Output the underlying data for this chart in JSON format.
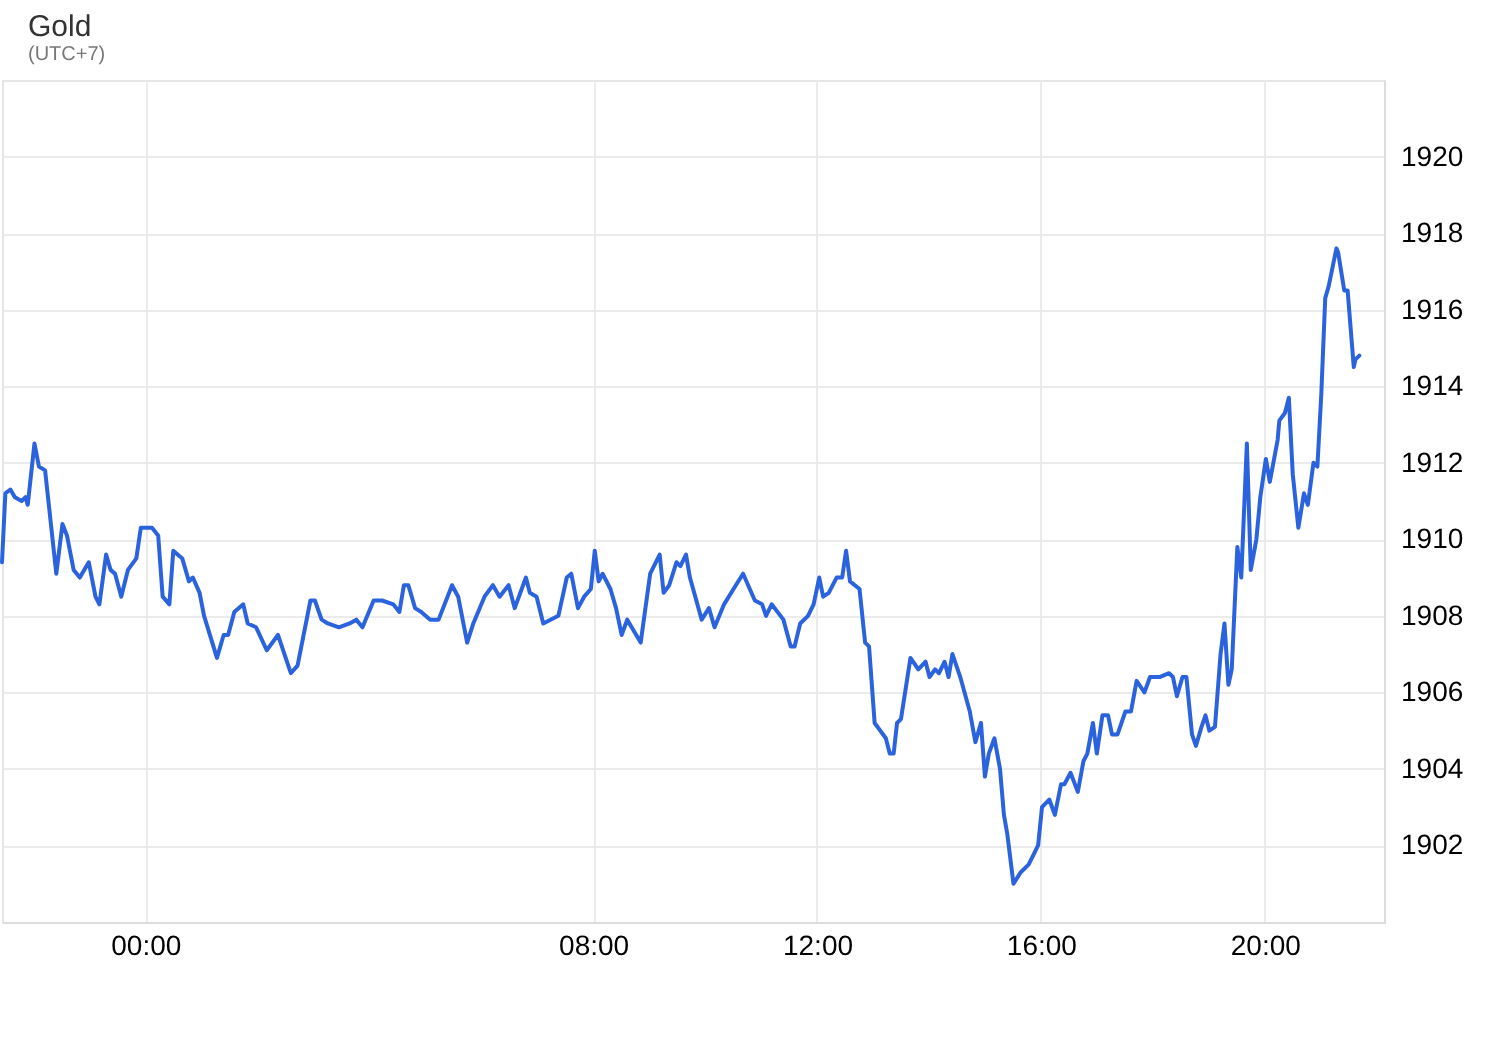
{
  "chart_data": {
    "type": "line",
    "title": "Gold",
    "subtitle": "(UTC+7)",
    "color": "#2b63de",
    "grid": true,
    "xlim": [
      -2.56,
      22.13
    ],
    "xticks": [
      {
        "value": 0,
        "label": "00:00"
      },
      {
        "value": 8,
        "label": "08:00"
      },
      {
        "value": 12,
        "label": "12:00"
      },
      {
        "value": 16,
        "label": "16:00"
      },
      {
        "value": 20,
        "label": "20:00"
      }
    ],
    "ylim": [
      1900,
      1922
    ],
    "yticks": [
      1902,
      1904,
      1906,
      1908,
      1910,
      1912,
      1914,
      1916,
      1918,
      1920
    ],
    "x": [
      -2.56,
      -2.5,
      -2.41,
      -2.33,
      -2.21,
      -2.14,
      -2.1,
      -1.98,
      -1.9,
      -1.79,
      -1.59,
      -1.48,
      -1.4,
      -1.28,
      -1.17,
      -1.01,
      -0.89,
      -0.82,
      -0.7,
      -0.62,
      -0.54,
      -0.43,
      -0.31,
      -0.16,
      -0.08,
      0.12,
      0.23,
      0.31,
      0.43,
      0.5,
      0.66,
      0.78,
      0.85,
      0.97,
      1.05,
      1.28,
      1.4,
      1.48,
      1.59,
      1.75,
      1.83,
      1.98,
      2.17,
      2.37,
      2.6,
      2.72,
      2.95,
      3.03,
      3.15,
      3.26,
      3.46,
      3.65,
      3.77,
      3.88,
      4.08,
      4.23,
      4.43,
      4.54,
      4.62,
      4.7,
      4.82,
      4.93,
      5.09,
      5.24,
      5.48,
      5.59,
      5.75,
      5.86,
      6.06,
      6.21,
      6.33,
      6.49,
      6.6,
      6.8,
      6.87,
      6.99,
      7.11,
      7.38,
      7.53,
      7.61,
      7.73,
      7.84,
      7.96,
      8.03,
      8.1,
      8.17,
      8.31,
      8.41,
      8.51,
      8.61,
      8.85,
      9.02,
      9.19,
      9.26,
      9.36,
      9.49,
      9.56,
      9.66,
      9.73,
      9.94,
      10.07,
      10.17,
      10.34,
      10.55,
      10.68,
      10.89,
      11.02,
      11.09,
      11.19,
      11.4,
      11.53,
      11.6,
      11.7,
      11.84,
      11.94,
      12.04,
      12.11,
      12.21,
      12.35,
      12.45,
      12.52,
      12.59,
      12.76,
      12.86,
      12.93,
      13.03,
      13.13,
      13.23,
      13.3,
      13.37,
      13.43,
      13.5,
      13.67,
      13.81,
      13.94,
      14.01,
      14.11,
      14.18,
      14.28,
      14.35,
      14.42,
      14.56,
      14.73,
      14.83,
      14.93,
      15.0,
      15.07,
      15.17,
      15.27,
      15.34,
      15.4,
      15.51,
      15.64,
      15.78,
      15.85,
      15.95,
      16.02,
      16.15,
      16.25,
      16.36,
      16.42,
      16.53,
      16.66,
      16.76,
      16.83,
      16.93,
      17.0,
      17.1,
      17.2,
      17.27,
      17.37,
      17.51,
      17.61,
      17.71,
      17.85,
      17.95,
      18.12,
      18.29,
      18.36,
      18.43,
      18.53,
      18.6,
      18.7,
      18.77,
      18.87,
      18.94,
      19.01,
      19.11,
      19.21,
      19.28,
      19.35,
      19.41,
      19.51,
      19.58,
      19.68,
      19.75,
      19.85,
      19.92,
      20.02,
      20.09,
      20.23,
      20.26,
      20.36,
      20.43,
      20.5,
      20.6,
      20.7,
      20.77,
      20.87,
      20.94,
      21.01,
      21.08,
      21.14,
      21.28,
      21.31,
      21.42,
      21.48,
      21.59,
      21.62,
      21.69
    ],
    "values": [
      1909.4,
      1911.2,
      1911.3,
      1911.1,
      1911.0,
      1911.1,
      1910.9,
      1912.5,
      1911.9,
      1911.8,
      1909.1,
      1910.4,
      1910.1,
      1909.2,
      1909.0,
      1909.4,
      1908.5,
      1908.3,
      1909.6,
      1909.2,
      1909.1,
      1908.5,
      1909.2,
      1909.5,
      1910.3,
      1910.3,
      1910.1,
      1908.5,
      1908.3,
      1909.7,
      1909.5,
      1908.9,
      1909.0,
      1908.6,
      1908.0,
      1906.9,
      1907.5,
      1907.5,
      1908.1,
      1908.3,
      1907.8,
      1907.7,
      1907.1,
      1907.5,
      1906.5,
      1906.7,
      1908.4,
      1908.4,
      1907.9,
      1907.8,
      1907.7,
      1907.8,
      1907.9,
      1907.7,
      1908.4,
      1908.4,
      1908.3,
      1908.1,
      1908.8,
      1908.8,
      1908.2,
      1908.1,
      1907.9,
      1907.9,
      1908.8,
      1908.5,
      1907.3,
      1907.8,
      1908.5,
      1908.8,
      1908.5,
      1908.8,
      1908.2,
      1909.0,
      1908.6,
      1908.5,
      1907.8,
      1908.0,
      1909.0,
      1909.1,
      1908.2,
      1908.5,
      1908.7,
      1909.7,
      1908.9,
      1909.1,
      1908.7,
      1908.2,
      1907.5,
      1907.9,
      1907.3,
      1909.1,
      1909.6,
      1908.6,
      1908.8,
      1909.4,
      1909.3,
      1909.6,
      1909.0,
      1907.9,
      1908.2,
      1907.7,
      1908.3,
      1908.8,
      1909.1,
      1908.4,
      1908.3,
      1908.0,
      1908.3,
      1907.9,
      1907.2,
      1907.2,
      1907.8,
      1908.0,
      1908.3,
      1909.0,
      1908.5,
      1908.6,
      1909.0,
      1909.0,
      1909.7,
      1908.9,
      1908.7,
      1907.3,
      1907.2,
      1905.2,
      1905.0,
      1904.8,
      1904.4,
      1904.4,
      1905.2,
      1905.3,
      1906.9,
      1906.6,
      1906.8,
      1906.4,
      1906.6,
      1906.5,
      1906.8,
      1906.4,
      1907.0,
      1906.4,
      1905.5,
      1904.7,
      1905.2,
      1903.8,
      1904.4,
      1904.8,
      1904.0,
      1902.8,
      1902.3,
      1901.0,
      1901.3,
      1901.5,
      1901.7,
      1902.0,
      1903.0,
      1903.2,
      1902.8,
      1903.6,
      1903.6,
      1903.9,
      1903.4,
      1904.2,
      1904.4,
      1905.2,
      1904.4,
      1905.4,
      1905.4,
      1904.9,
      1904.9,
      1905.5,
      1905.5,
      1906.3,
      1906.0,
      1906.4,
      1906.4,
      1906.5,
      1906.4,
      1905.9,
      1906.4,
      1906.4,
      1904.9,
      1904.6,
      1905.1,
      1905.4,
      1905.0,
      1905.1,
      1907.0,
      1907.8,
      1906.2,
      1906.6,
      1909.8,
      1909.0,
      1912.5,
      1909.2,
      1910.0,
      1911.1,
      1912.1,
      1911.5,
      1912.6,
      1913.1,
      1913.3,
      1913.7,
      1911.7,
      1910.3,
      1911.2,
      1910.9,
      1912.0,
      1911.9,
      1913.8,
      1916.3,
      1916.6,
      1917.6,
      1917.5,
      1916.5,
      1916.5,
      1914.5,
      1914.7,
      1914.8
    ]
  }
}
